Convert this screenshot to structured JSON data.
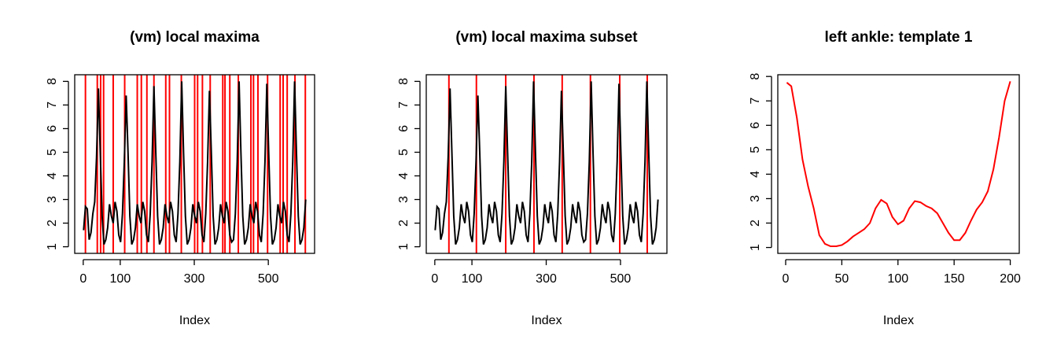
{
  "chart_data": [
    {
      "type": "line",
      "title": "(vm) local maxima",
      "xlabel": "Index",
      "x": [
        1,
        6,
        11,
        16,
        21,
        26,
        31,
        36,
        41,
        46,
        51,
        56,
        61,
        66,
        71,
        76,
        81,
        86,
        91,
        96,
        101,
        106,
        111,
        116,
        121,
        126,
        131,
        136,
        141,
        146,
        151,
        156,
        161,
        166,
        171,
        176,
        181,
        186,
        191,
        196,
        201,
        206,
        211,
        216,
        221,
        226,
        231,
        236,
        241,
        246,
        251,
        256,
        261,
        266,
        271,
        276,
        281,
        286,
        291,
        296,
        301,
        306,
        311,
        316,
        321,
        326,
        331,
        336,
        341,
        346,
        351,
        356,
        361,
        366,
        371,
        376,
        381,
        386,
        391,
        396,
        401,
        406,
        411,
        416,
        421,
        426,
        431,
        436,
        441,
        446,
        451,
        456,
        461,
        466,
        471,
        476,
        481,
        486,
        491,
        496,
        501,
        506,
        511,
        516,
        521,
        526,
        531,
        536,
        541,
        546,
        551,
        556,
        561,
        566,
        571,
        576,
        581,
        586,
        591,
        596,
        601
      ],
      "series": [
        {
          "color": "#000000",
          "values": [
            1.7,
            2.7,
            2.6,
            1.3,
            1.6,
            2.4,
            2.9,
            4.8,
            7.7,
            5.0,
            2.3,
            1.1,
            1.3,
            1.8,
            2.8,
            2.3,
            2.0,
            2.9,
            2.5,
            1.5,
            1.2,
            2.4,
            4.6,
            7.4,
            5.0,
            2.3,
            1.1,
            1.3,
            1.8,
            2.8,
            2.3,
            2.0,
            2.9,
            2.5,
            1.5,
            1.2,
            2.4,
            4.6,
            7.8,
            5.0,
            2.3,
            1.1,
            1.3,
            1.8,
            2.8,
            2.3,
            2.0,
            2.9,
            2.5,
            1.5,
            1.2,
            2.4,
            4.6,
            8.0,
            5.0,
            2.3,
            1.1,
            1.3,
            1.8,
            2.8,
            2.3,
            2.0,
            2.9,
            2.5,
            1.5,
            1.2,
            2.4,
            4.6,
            7.6,
            5.0,
            2.3,
            1.1,
            1.3,
            1.8,
            2.8,
            2.3,
            2.0,
            2.9,
            2.5,
            1.5,
            1.2,
            1.3,
            2.4,
            4.6,
            8.0,
            5.0,
            2.3,
            1.1,
            1.3,
            1.8,
            2.8,
            2.3,
            2.0,
            2.9,
            2.5,
            1.5,
            1.2,
            2.4,
            4.6,
            7.9,
            5.0,
            2.3,
            1.1,
            1.3,
            1.8,
            2.8,
            2.3,
            2.0,
            2.9,
            2.5,
            1.5,
            1.2,
            2.4,
            4.6,
            8.0,
            5.0,
            2.3,
            1.1,
            1.3,
            1.8,
            3.0
          ]
        }
      ],
      "vlines": [
        6,
        38,
        47,
        55,
        81,
        112,
        146,
        157,
        172,
        191,
        223,
        233,
        265,
        301,
        309,
        322,
        343,
        377,
        383,
        396,
        419,
        453,
        460,
        472,
        498,
        532,
        540,
        551,
        572,
        600
      ],
      "vline_color": "#ff0000",
      "xlim": [
        -23,
        625
      ],
      "ylim": [
        0.72,
        8.28
      ],
      "xticks": [
        0,
        100,
        300,
        500
      ],
      "yticks": [
        1,
        2,
        3,
        4,
        5,
        6,
        7,
        8
      ]
    },
    {
      "type": "line",
      "title": "(vm) local maxima subset",
      "xlabel": "Index",
      "x": [
        1,
        6,
        11,
        16,
        21,
        26,
        31,
        36,
        41,
        46,
        51,
        56,
        61,
        66,
        71,
        76,
        81,
        86,
        91,
        96,
        101,
        106,
        111,
        116,
        121,
        126,
        131,
        136,
        141,
        146,
        151,
        156,
        161,
        166,
        171,
        176,
        181,
        186,
        191,
        196,
        201,
        206,
        211,
        216,
        221,
        226,
        231,
        236,
        241,
        246,
        251,
        256,
        261,
        266,
        271,
        276,
        281,
        286,
        291,
        296,
        301,
        306,
        311,
        316,
        321,
        326,
        331,
        336,
        341,
        346,
        351,
        356,
        361,
        366,
        371,
        376,
        381,
        386,
        391,
        396,
        401,
        406,
        411,
        416,
        421,
        426,
        431,
        436,
        441,
        446,
        451,
        456,
        461,
        466,
        471,
        476,
        481,
        486,
        491,
        496,
        501,
        506,
        511,
        516,
        521,
        526,
        531,
        536,
        541,
        546,
        551,
        556,
        561,
        566,
        571,
        576,
        581,
        586,
        591,
        596,
        601
      ],
      "series": [
        {
          "color": "#000000",
          "values": [
            1.7,
            2.7,
            2.6,
            1.3,
            1.6,
            2.4,
            2.9,
            4.8,
            7.7,
            5.0,
            2.3,
            1.1,
            1.3,
            1.8,
            2.8,
            2.3,
            2.0,
            2.9,
            2.5,
            1.5,
            1.2,
            2.4,
            4.6,
            7.4,
            5.0,
            2.3,
            1.1,
            1.3,
            1.8,
            2.8,
            2.3,
            2.0,
            2.9,
            2.5,
            1.5,
            1.2,
            2.4,
            4.6,
            7.8,
            5.0,
            2.3,
            1.1,
            1.3,
            1.8,
            2.8,
            2.3,
            2.0,
            2.9,
            2.5,
            1.5,
            1.2,
            2.4,
            4.6,
            8.0,
            5.0,
            2.3,
            1.1,
            1.3,
            1.8,
            2.8,
            2.3,
            2.0,
            2.9,
            2.5,
            1.5,
            1.2,
            2.4,
            4.6,
            7.6,
            5.0,
            2.3,
            1.1,
            1.3,
            1.8,
            2.8,
            2.3,
            2.0,
            2.9,
            2.5,
            1.5,
            1.2,
            1.3,
            2.4,
            4.6,
            8.0,
            5.0,
            2.3,
            1.1,
            1.3,
            1.8,
            2.8,
            2.3,
            2.0,
            2.9,
            2.5,
            1.5,
            1.2,
            2.4,
            4.6,
            7.9,
            5.0,
            2.3,
            1.1,
            1.3,
            1.8,
            2.8,
            2.3,
            2.0,
            2.9,
            2.5,
            1.5,
            1.2,
            2.4,
            4.6,
            8.0,
            5.0,
            2.3,
            1.1,
            1.3,
            1.8,
            3.0
          ]
        }
      ],
      "vlines": [
        38,
        112,
        191,
        267,
        343,
        419,
        498,
        572
      ],
      "vline_color": "#ff0000",
      "xlim": [
        -23,
        625
      ],
      "ylim": [
        0.72,
        8.28
      ],
      "xticks": [
        0,
        100,
        300,
        500
      ],
      "yticks": [
        1,
        2,
        3,
        4,
        5,
        6,
        7,
        8
      ]
    },
    {
      "type": "line",
      "title": "left ankle: template 1",
      "xlabel": "Index",
      "x": [
        1,
        5,
        10,
        15,
        20,
        25,
        30,
        35,
        40,
        45,
        50,
        55,
        60,
        65,
        70,
        75,
        80,
        85,
        90,
        95,
        100,
        105,
        110,
        115,
        120,
        125,
        130,
        135,
        140,
        145,
        150,
        155,
        160,
        165,
        170,
        175,
        180,
        185,
        190,
        195,
        200
      ],
      "series": [
        {
          "color": "#ff0000",
          "values": [
            7.75,
            7.6,
            6.3,
            4.6,
            3.5,
            2.6,
            1.5,
            1.15,
            1.05,
            1.05,
            1.1,
            1.25,
            1.45,
            1.6,
            1.75,
            2.0,
            2.6,
            2.95,
            2.8,
            2.25,
            1.95,
            2.1,
            2.6,
            2.9,
            2.85,
            2.7,
            2.6,
            2.4,
            2.0,
            1.6,
            1.3,
            1.3,
            1.6,
            2.1,
            2.55,
            2.85,
            3.3,
            4.2,
            5.5,
            7.0,
            7.8
          ]
        }
      ],
      "xlim": [
        -7,
        208
      ],
      "ylim": [
        0.76,
        8.07
      ],
      "xticks": [
        0,
        50,
        100,
        150,
        200
      ],
      "yticks": [
        1,
        2,
        3,
        4,
        5,
        6,
        7,
        8
      ]
    }
  ]
}
